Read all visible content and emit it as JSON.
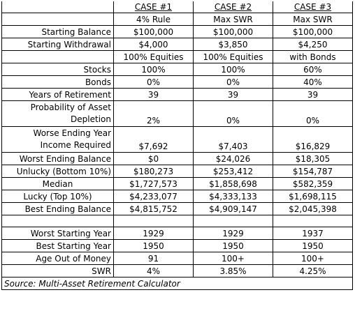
{
  "cases": [
    {
      "title": "CASE #1",
      "sub": "4% Rule"
    },
    {
      "title": "CASE #2",
      "sub": "Max SWR"
    },
    {
      "title": "CASE #3",
      "sub": "Max SWR"
    }
  ],
  "rows": [
    {
      "label": "Starting Balance",
      "values": [
        "$100,000",
        "$100,000",
        "$100,000"
      ]
    },
    {
      "label": "Starting Withdrawal",
      "values": [
        "$4,000",
        "$3,850",
        "$4,250"
      ]
    },
    {
      "label": "",
      "values": [
        "100% Equities",
        "100% Equities",
        "with Bonds"
      ]
    },
    {
      "label": "Stocks",
      "values": [
        "100%",
        "100%",
        "60%"
      ]
    },
    {
      "label": "Bonds",
      "values": [
        "0%",
        "0%",
        "40%"
      ]
    },
    {
      "label": "Years of Retirement",
      "values": [
        "39",
        "39",
        "39"
      ]
    },
    {
      "label_lines": [
        "Probability of Asset",
        "Depletion"
      ],
      "values": [
        "2%",
        "0%",
        "0%"
      ]
    },
    {
      "label_lines": [
        "Worse Ending Year",
        "Income Required"
      ],
      "values": [
        "$7,692",
        "$7,403",
        "$16,829"
      ]
    },
    {
      "label": "Worst Ending Balance",
      "values": [
        "$0",
        "$24,026",
        "$18,305"
      ]
    },
    {
      "label": "Unlucky (Bottom 10%)",
      "values": [
        "$180,273",
        "$253,412",
        "$154,787"
      ]
    },
    {
      "label": "Median",
      "values": [
        "$1,727,573",
        "$1,858,698",
        "$582,359"
      ]
    },
    {
      "label": "Lucky (Top 10%)",
      "values": [
        "$4,233,077",
        "$4,333,133",
        "$1,698,115"
      ]
    },
    {
      "label": "Best Ending Balance",
      "values": [
        "$4,815,752",
        "$4,909,147",
        "$2,045,398"
      ]
    }
  ],
  "rows2": [
    {
      "label": "Worst Starting Year",
      "values": [
        "1929",
        "1929",
        "1937"
      ]
    },
    {
      "label": "Best Starting Year",
      "values": [
        "1950",
        "1950",
        "1950"
      ]
    },
    {
      "label": "Age Out of Money",
      "values": [
        "91",
        "100+",
        "100+"
      ]
    },
    {
      "label": "SWR",
      "values": [
        "4%",
        "3.85%",
        "4.25%"
      ]
    }
  ],
  "source": "Source: Multi-Asset Retirement Calculator"
}
